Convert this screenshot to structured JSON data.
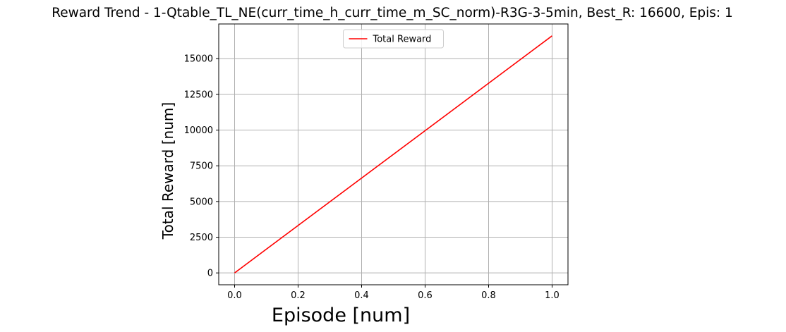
{
  "chart_data": {
    "type": "line",
    "title": "Reward Trend - 1-Qtable_TL_NE(curr_time_h_curr_time_m_SC_norm)-R3G-3-5min, Best_R: 16600, Epis: 1",
    "xlabel": "Episode [num]",
    "ylabel": "Total Reward [num]",
    "xlim": [
      -0.05,
      1.05
    ],
    "ylim": [
      -830,
      17430
    ],
    "xticks": [
      0.0,
      0.2,
      0.4,
      0.6,
      0.8,
      1.0
    ],
    "xtick_labels": [
      "0.0",
      "0.2",
      "0.4",
      "0.6",
      "0.8",
      "1.0"
    ],
    "yticks": [
      0,
      2500,
      5000,
      7500,
      10000,
      12500,
      15000
    ],
    "ytick_labels": [
      "0",
      "2500",
      "5000",
      "7500",
      "10000",
      "12500",
      "15000"
    ],
    "grid": true,
    "legend_position": "upper-center",
    "series": [
      {
        "name": "Total Reward",
        "color": "#ff0000",
        "x": [
          0,
          1
        ],
        "y": [
          0,
          16600
        ]
      }
    ]
  }
}
